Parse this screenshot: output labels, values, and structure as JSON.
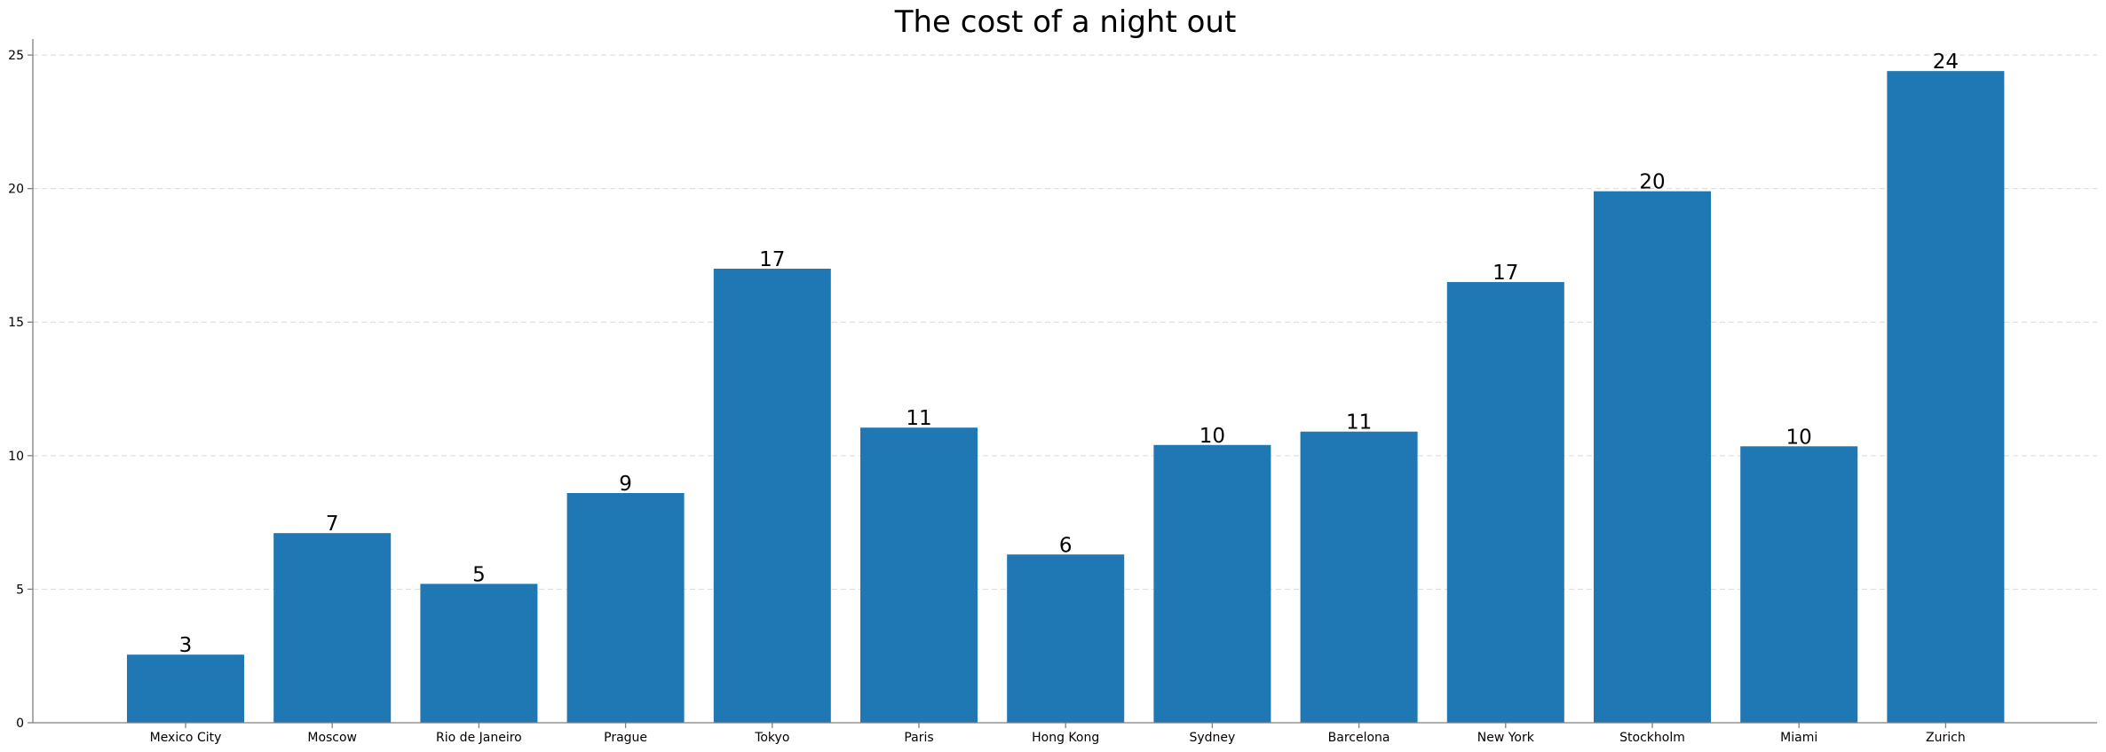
{
  "chart_data": {
    "type": "bar",
    "title": "The cost of a night out",
    "xlabel": "",
    "ylabel": "",
    "categories": [
      "Mexico City",
      "Moscow",
      "Rio de Janeiro",
      "Prague",
      "Tokyo",
      "Paris",
      "Hong Kong",
      "Sydney",
      "Barcelona",
      "New York",
      "Stockholm",
      "Miami",
      "Zurich"
    ],
    "values": [
      2.55,
      7.1,
      5.2,
      8.6,
      17.0,
      11.05,
      6.3,
      10.4,
      10.9,
      16.5,
      19.9,
      10.35,
      24.4
    ],
    "data_labels": [
      "3",
      "7",
      "5",
      "9",
      "17",
      "11",
      "6",
      "10",
      "11",
      "17",
      "20",
      "10",
      "24"
    ],
    "yticks": [
      0,
      5,
      10,
      15,
      20,
      25
    ],
    "ylim": [
      0,
      25.6
    ],
    "grid": "y-dashed",
    "colors": {
      "bar": "#1f77b4"
    }
  }
}
